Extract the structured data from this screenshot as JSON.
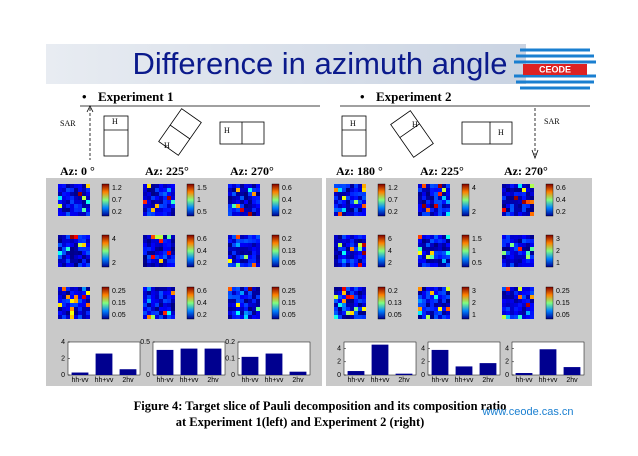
{
  "title": "Difference in azimuth angle",
  "logo": "CEODE",
  "url": "www.ceode.cas.cn",
  "diagram": {
    "sar": [
      "SAR",
      "SAR"
    ],
    "h": [
      "H",
      "H",
      "H",
      "H",
      "H",
      "H"
    ]
  },
  "experiments": [
    {
      "heading": "Experiment 1",
      "panels": [
        {
          "az": "Az: 0 °",
          "colorbars": [
            [
              1.2,
              0.7,
              0.2
            ],
            [
              4,
              2
            ],
            [
              0.25,
              0.15,
              0.05
            ]
          ],
          "bars": {
            "categories": [
              "hh-vv",
              "hh+vv",
              "2hv"
            ],
            "values": [
              0.3,
              2.6,
              0.7
            ],
            "ylim": [
              0,
              4
            ],
            "yticks": [
              0,
              2,
              4
            ]
          }
        },
        {
          "az": "Az: 225°",
          "colorbars": [
            [
              1.5,
              1,
              0.5
            ],
            [
              0.6,
              0.4,
              0.2
            ],
            [
              0.6,
              0.4,
              0.2
            ]
          ],
          "bars": {
            "categories": [
              "hh-vv",
              "hh+vv",
              "2hv"
            ],
            "values": [
              0.38,
              0.4,
              0.4
            ],
            "ylim": [
              0,
              0.5
            ],
            "yticks": [
              0,
              0.5
            ]
          }
        },
        {
          "az": "Az: 270°",
          "colorbars": [
            [
              0.6,
              0.4,
              0.2
            ],
            [
              0.2,
              0.13,
              0.05
            ],
            [
              0.25,
              0.15,
              0.05
            ]
          ],
          "bars": {
            "categories": [
              "hh-vv",
              "hh+vv",
              "2hv"
            ],
            "values": [
              0.11,
              0.13,
              0.02
            ],
            "ylim": [
              0,
              0.2
            ],
            "yticks": [
              0,
              0.1,
              0.2
            ]
          }
        }
      ]
    },
    {
      "heading": "Experiment 2",
      "panels": [
        {
          "az": "Az: 180 °",
          "colorbars": [
            [
              1.2,
              0.7,
              0.2
            ],
            [
              6,
              4,
              2
            ],
            [
              0.2,
              0.13,
              0.05
            ]
          ],
          "bars": {
            "categories": [
              "hh-vv",
              "hh+vv",
              "2hv"
            ],
            "values": [
              0.6,
              4.6,
              0.2
            ],
            "ylim": [
              0,
              5
            ],
            "yticks": [
              0,
              2,
              4
            ]
          }
        },
        {
          "az": "Az: 225°",
          "colorbars": [
            [
              4,
              2
            ],
            [
              1.5,
              1,
              0.5
            ],
            [
              3,
              2,
              1
            ]
          ],
          "bars": {
            "categories": [
              "hh-vv",
              "hh+vv",
              "2hv"
            ],
            "values": [
              3.8,
              1.3,
              1.8
            ],
            "ylim": [
              0,
              5
            ],
            "yticks": [
              0,
              2,
              4
            ]
          }
        },
        {
          "az": "Az: 270°",
          "colorbars": [
            [
              0.6,
              0.4,
              0.2
            ],
            [
              3,
              2,
              1
            ],
            [
              0.25,
              0.15,
              0.05
            ]
          ],
          "bars": {
            "categories": [
              "hh-vv",
              "hh+vv",
              "2hv"
            ],
            "values": [
              0.3,
              3.9,
              1.2
            ],
            "ylim": [
              0,
              5
            ],
            "yticks": [
              0,
              2,
              4
            ]
          }
        }
      ]
    }
  ],
  "caption": [
    "Figure 4:  Target slice of Pauli decomposition and its composition ratio",
    "at Experiment 1(left)  and Experiment 2 (right)"
  ]
}
